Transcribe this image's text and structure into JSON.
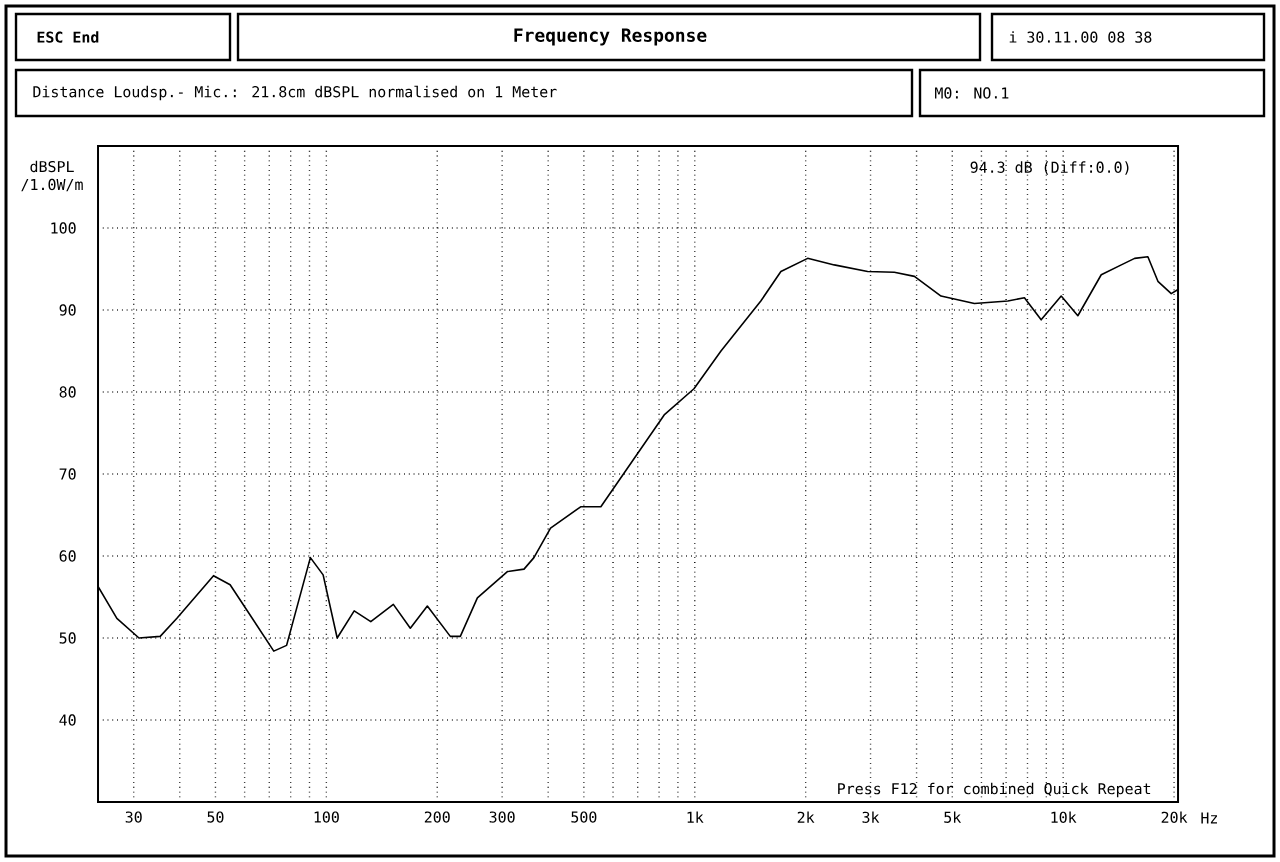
{
  "chart_data": {
    "type": "line",
    "title": "Frequency Response",
    "subtitle": "Distance Loudsp.- Mic.: 21.8cm dBSPL normalised on 1 Meter",
    "ylabel": "dBSPL /1.0W/m",
    "annotations": [
      "ESC End",
      "i 30.11.00 08 38",
      "M0: NO.1",
      "94.3 dB (Diff:0.0)",
      "Press F12 for combined Quick Repeat"
    ],
    "x": [
      24,
      27,
      31,
      35.4,
      39.3,
      49.4,
      54.8,
      72,
      78,
      90.5,
      98,
      107,
      119,
      132,
      152,
      169,
      188,
      217,
      231,
      257,
      310,
      344,
      366,
      406,
      490,
      556,
      826,
      995,
      1178,
      1511,
      1713,
      2025,
      2391,
      2946,
      3481,
      3947,
      4660,
      5741,
      7077,
      7850,
      8714,
      9877,
      10960,
      12685,
      14380,
      15630,
      16980,
      18080,
      19650,
      20500
    ],
    "series": [
      {
        "color": "#000000",
        "values": [
          56.3,
          52.4,
          50,
          50.2,
          52.4,
          57.6,
          56.5,
          48.4,
          49.1,
          59.8,
          57.7,
          50,
          53.3,
          52,
          54.1,
          51.2,
          53.9,
          50.2,
          50.2,
          54.9,
          58.1,
          58.4,
          59.8,
          63.4,
          66,
          66,
          77.2,
          80.4,
          85,
          91.1,
          94.7,
          96.3,
          95.5,
          94.7,
          94.6,
          94.1,
          91.7,
          90.8,
          91.1,
          91.5,
          88.8,
          91.7,
          89.3,
          94.3,
          95.5,
          96.3,
          96.5,
          93.5,
          92,
          92.5
        ]
      }
    ],
    "log": "x",
    "grid": true,
    "marker": "none",
    "line_style": "solid",
    "xlim": [
      24,
      20500
    ],
    "ylim": [
      30,
      110
    ],
    "xticks": [
      {
        "value": 30,
        "label": "30"
      },
      {
        "value": 40,
        "label": null
      },
      {
        "value": 50,
        "label": "50"
      },
      {
        "value": 60,
        "label": null
      },
      {
        "value": 70,
        "label": null
      },
      {
        "value": 80,
        "label": null
      },
      {
        "value": 90,
        "label": null
      },
      {
        "value": 100,
        "label": "100"
      },
      {
        "value": 200,
        "label": "200"
      },
      {
        "value": 300,
        "label": "300"
      },
      {
        "value": 400,
        "label": null
      },
      {
        "value": 500,
        "label": "500"
      },
      {
        "value": 600,
        "label": null
      },
      {
        "value": 700,
        "label": null
      },
      {
        "value": 800,
        "label": null
      },
      {
        "value": 900,
        "label": null
      },
      {
        "value": 1000,
        "label": "1k"
      },
      {
        "value": 2000,
        "label": "2k"
      },
      {
        "value": 3000,
        "label": "3k"
      },
      {
        "value": 4000,
        "label": null
      },
      {
        "value": 5000,
        "label": "5k"
      },
      {
        "value": 6000,
        "label": null
      },
      {
        "value": 7000,
        "label": null
      },
      {
        "value": 8000,
        "label": null
      },
      {
        "value": 9000,
        "label": null
      },
      {
        "value": 10000,
        "label": "10k"
      },
      {
        "value": 20000,
        "label": "20k"
      }
    ],
    "xlabel": "Hz",
    "yticks": [
      40,
      50,
      60,
      70,
      80,
      90,
      100
    ]
  }
}
